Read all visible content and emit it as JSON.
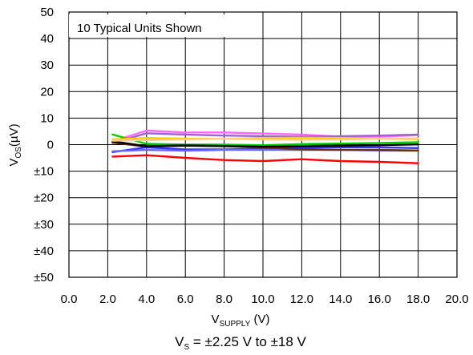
{
  "chart_data": {
    "type": "line",
    "annotation": "10 Typical Units Shown",
    "xlabel": {
      "main": "V",
      "sub": "SUPPLY",
      "tail": " (V)"
    },
    "ylabel": {
      "main": "V",
      "sub": "OS",
      "tail": "(µV)"
    },
    "caption": {
      "main": "V",
      "sub": "S",
      "tail": " = ±2.25 V to ±18 V"
    },
    "xlim": [
      0,
      20
    ],
    "ylim": [
      -50,
      50
    ],
    "grid": true,
    "x_ticks": [
      {
        "value": 0,
        "label": "0.0"
      },
      {
        "value": 2,
        "label": "2.0"
      },
      {
        "value": 4,
        "label": "4.0"
      },
      {
        "value": 6,
        "label": "6.0"
      },
      {
        "value": 8,
        "label": "8.0"
      },
      {
        "value": 10,
        "label": "10.0"
      },
      {
        "value": 12,
        "label": "12.0"
      },
      {
        "value": 14,
        "label": "14.0"
      },
      {
        "value": 16,
        "label": "16.0"
      },
      {
        "value": 18,
        "label": "18.0"
      },
      {
        "value": 20,
        "label": "20.0"
      }
    ],
    "y_ticks": [
      {
        "value": 50,
        "label": "50"
      },
      {
        "value": 40,
        "label": "40"
      },
      {
        "value": 30,
        "label": "30"
      },
      {
        "value": 20,
        "label": "20"
      },
      {
        "value": 10,
        "label": "10"
      },
      {
        "value": 0,
        "label": "0"
      },
      {
        "value": -10,
        "label": "±10"
      },
      {
        "value": -20,
        "label": "±20"
      },
      {
        "value": -30,
        "label": "±30"
      },
      {
        "value": -40,
        "label": "±40"
      },
      {
        "value": -50,
        "label": "±50"
      }
    ],
    "x": [
      2.25,
      4,
      6,
      8,
      10,
      12,
      14,
      16,
      18
    ],
    "series": [
      {
        "color": "#ff0000",
        "values": [
          -4.5,
          -4.0,
          -5.0,
          -5.8,
          -6.2,
          -5.5,
          -6.2,
          -6.5,
          -7.0
        ]
      },
      {
        "color": "#ff66ff",
        "values": [
          1.2,
          5.3,
          4.6,
          4.6,
          4.2,
          3.8,
          3.0,
          3.0,
          3.6
        ]
      },
      {
        "color": "#9966cc",
        "values": [
          0.6,
          4.3,
          3.8,
          3.4,
          3.2,
          3.0,
          3.2,
          3.4,
          3.8
        ]
      },
      {
        "color": "#3333ff",
        "values": [
          -2.8,
          -1.0,
          -1.8,
          -1.8,
          -1.5,
          -1.2,
          -1.0,
          -1.0,
          -1.3
        ]
      },
      {
        "color": "#6666ff",
        "values": [
          -2.5,
          -2.0,
          -2.3,
          -2.0,
          -2.0,
          -2.0,
          -2.0,
          -2.2,
          -2.3
        ]
      },
      {
        "color": "#00cc00",
        "values": [
          3.8,
          0.3,
          0.0,
          0.0,
          -0.2,
          0.2,
          0.4,
          0.6,
          0.9
        ]
      },
      {
        "color": "#ffcc00",
        "values": [
          2.0,
          2.5,
          2.3,
          2.2,
          2.5,
          2.6,
          2.5,
          2.2,
          2.1
        ]
      },
      {
        "color": "#663300",
        "values": [
          0.8,
          -0.8,
          -0.4,
          -0.6,
          -1.0,
          -1.8,
          -2.0,
          -2.0,
          -2.2
        ]
      },
      {
        "color": "#000000",
        "values": [
          1.2,
          -0.6,
          -0.3,
          -0.5,
          -0.8,
          -0.6,
          -0.4,
          -0.2,
          0.1
        ]
      },
      {
        "color": "#ffcc99",
        "values": [
          1.5,
          1.7,
          2.0,
          2.2,
          2.0,
          1.8,
          2.0,
          2.2,
          2.4
        ]
      }
    ]
  }
}
